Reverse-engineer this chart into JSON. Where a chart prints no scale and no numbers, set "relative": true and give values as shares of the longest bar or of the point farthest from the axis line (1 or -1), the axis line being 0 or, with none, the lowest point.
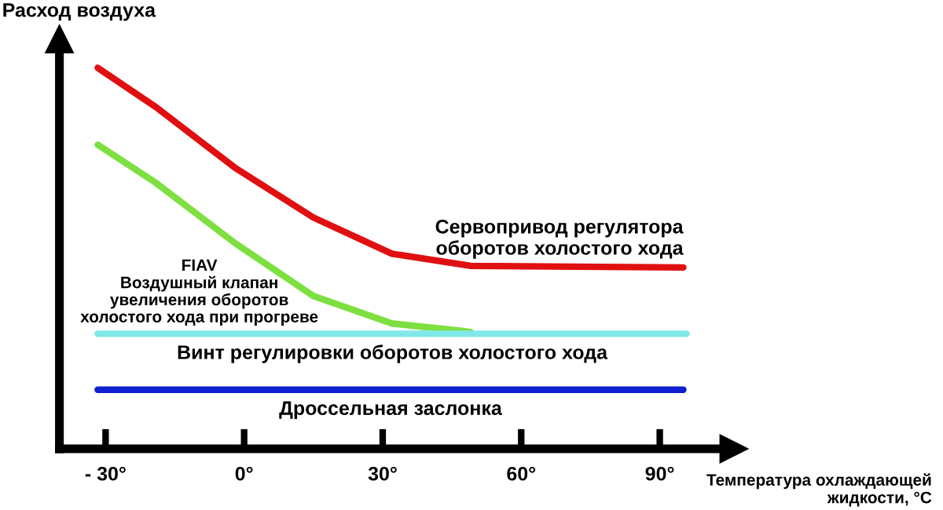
{
  "chart_data": {
    "type": "line",
    "relative": true,
    "ylabel": "Расход воздуха",
    "xlabel": "Температура охлаждающей\nжидкости, °C",
    "xlim": [
      -40,
      106
    ],
    "xticks": [
      {
        "value": -30,
        "label": "- 30°"
      },
      {
        "value": 0,
        "label": "0°"
      },
      {
        "value": 30,
        "label": "30°"
      },
      {
        "value": 60,
        "label": "60°"
      },
      {
        "value": 90,
        "label": "90°"
      }
    ],
    "series": [
      {
        "name": "Сервопривод регулятора\nоборотов холостого хода",
        "color": "#e01010",
        "x": [
          -31.7,
          -19.1,
          -2.0,
          15.0,
          32.0,
          49.1,
          95.1
        ],
        "values": [
          1.0,
          0.897,
          0.738,
          0.607,
          0.512,
          0.48,
          0.476
        ]
      },
      {
        "name": "FIAV\nВоздушный клапан\nувеличения оборотов\nхолостого хода при прогреве",
        "color": "#7de040",
        "x": [
          -31.7,
          -19.1,
          -2.0,
          15.0,
          32.0,
          46.7,
          49.1
        ],
        "values": [
          0.798,
          0.698,
          0.54,
          0.401,
          0.329,
          0.31,
          0.306
        ]
      },
      {
        "name": "Винт регулировки оборотов холостого хода",
        "color": "#80e8e8",
        "x": [
          -31.7,
          95.8
        ],
        "values": [
          0.302,
          0.302
        ]
      },
      {
        "name": "Дроссельная заслонка",
        "color": "#1020d0",
        "x": [
          -31.7,
          95.1
        ],
        "values": [
          0.155,
          0.155
        ]
      }
    ]
  }
}
